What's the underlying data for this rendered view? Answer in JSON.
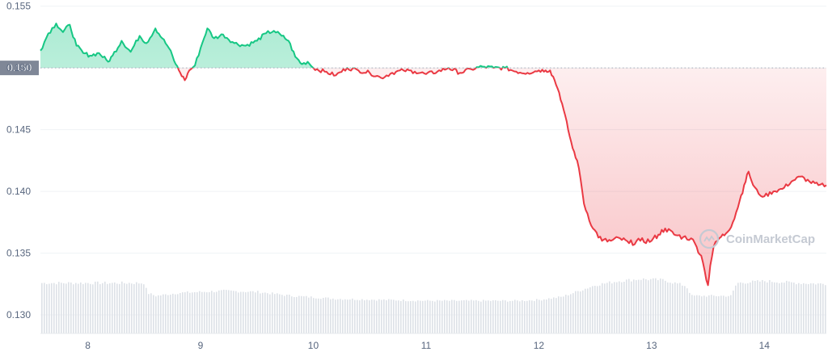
{
  "chart_data": {
    "type": "area",
    "title": "",
    "xlabel": "",
    "ylabel": "",
    "ylim": [
      0.1285,
      0.1555
    ],
    "xlim": [
      7.58,
      14.55
    ],
    "y_ticks": [
      "0.155",
      "0.150",
      "0.145",
      "0.140",
      "0.135",
      "0.130"
    ],
    "y_tick_values": [
      0.155,
      0.15,
      0.145,
      0.14,
      0.135,
      0.13
    ],
    "x_ticks": [
      "8",
      "9",
      "10",
      "11",
      "12",
      "13",
      "14"
    ],
    "x_tick_values": [
      8,
      9,
      10,
      11,
      12,
      13,
      14
    ],
    "reference_price": 0.15,
    "reference_label": "0.150",
    "grid": true,
    "legend": "none",
    "colors": {
      "above": "#16c784",
      "below": "#ea3943",
      "volume": "#d5d9e0",
      "label_bg": "#7f8797"
    },
    "watermark": "CoinMarketCap",
    "series": [
      {
        "x": [
          7.58,
          7.65,
          7.72,
          7.78,
          7.84,
          7.9,
          7.96,
          8.02,
          8.1,
          8.18,
          8.22,
          8.3,
          8.38,
          8.46,
          8.52,
          8.6,
          8.66,
          8.72,
          8.78,
          8.82,
          8.86,
          8.9,
          8.95,
          9.0,
          9.06,
          9.12,
          9.2,
          9.3,
          9.4,
          9.5,
          9.58,
          9.65,
          9.72,
          9.78,
          9.84,
          9.9,
          9.95,
          10.0,
          10.1,
          10.2,
          10.3,
          10.4,
          10.5,
          10.6,
          10.7,
          10.8,
          10.9,
          11.0,
          11.1,
          11.2,
          11.3,
          11.4,
          11.5,
          11.6,
          11.7,
          11.8,
          11.9,
          12.0,
          12.06,
          12.1,
          12.14,
          12.18,
          12.22,
          12.26,
          12.3,
          12.34,
          12.37,
          12.4,
          12.48,
          12.56,
          12.64,
          12.72,
          12.8,
          12.9,
          13.0,
          13.06,
          13.12,
          13.2,
          13.28,
          13.35,
          13.4,
          13.44,
          13.47,
          13.5,
          13.52,
          13.55,
          13.6,
          13.66,
          13.72,
          13.78,
          13.82,
          13.86,
          13.9,
          13.95,
          14.0,
          14.08,
          14.16,
          14.24,
          14.32,
          14.4,
          14.48,
          14.55
        ],
        "y": [
          0.1514,
          0.1528,
          0.1536,
          0.1529,
          0.1535,
          0.1518,
          0.1512,
          0.151,
          0.1512,
          0.1505,
          0.151,
          0.1522,
          0.1513,
          0.1526,
          0.152,
          0.1532,
          0.1524,
          0.1516,
          0.1503,
          0.1496,
          0.149,
          0.1498,
          0.1502,
          0.1516,
          0.1532,
          0.1524,
          0.1527,
          0.152,
          0.1518,
          0.1522,
          0.1528,
          0.153,
          0.1526,
          0.1522,
          0.1509,
          0.1503,
          0.1505,
          0.15,
          0.1497,
          0.1494,
          0.15,
          0.1498,
          0.1496,
          0.1492,
          0.1496,
          0.1498,
          0.1497,
          0.1495,
          0.1497,
          0.15,
          0.1496,
          0.1499,
          0.1501,
          0.15,
          0.15,
          0.1497,
          0.1496,
          0.1498,
          0.1498,
          0.1498,
          0.149,
          0.148,
          0.1466,
          0.145,
          0.1435,
          0.1425,
          0.141,
          0.139,
          0.137,
          0.136,
          0.136,
          0.1362,
          0.1358,
          0.136,
          0.136,
          0.1365,
          0.137,
          0.1365,
          0.1363,
          0.1362,
          0.1355,
          0.1348,
          0.1336,
          0.1324,
          0.134,
          0.1355,
          0.1362,
          0.1366,
          0.1375,
          0.1392,
          0.1405,
          0.1416,
          0.1405,
          0.1398,
          0.1396,
          0.14,
          0.1402,
          0.1408,
          0.1412,
          0.1408,
          0.1405,
          0.1405
        ]
      }
    ],
    "volume_series": {
      "x": [
        7.58,
        7.9,
        8.2,
        8.5,
        8.52,
        8.6,
        8.8,
        9.0,
        9.2,
        9.5,
        9.8,
        10.2,
        10.6,
        11.0,
        11.4,
        11.8,
        12.0,
        12.2,
        12.3,
        12.5,
        12.7,
        12.9,
        13.1,
        13.3,
        13.35,
        13.55,
        13.7,
        13.75,
        14.0,
        14.3,
        14.55
      ],
      "values": [
        0.51,
        0.51,
        0.51,
        0.51,
        0.41,
        0.38,
        0.41,
        0.42,
        0.43,
        0.42,
        0.38,
        0.35,
        0.34,
        0.33,
        0.33,
        0.33,
        0.34,
        0.37,
        0.41,
        0.49,
        0.53,
        0.55,
        0.54,
        0.48,
        0.38,
        0.38,
        0.38,
        0.51,
        0.53,
        0.51,
        0.5
      ]
    }
  }
}
